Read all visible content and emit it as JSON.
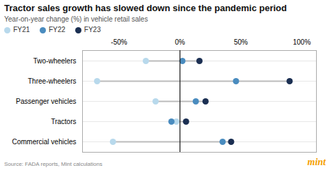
{
  "chart_data": {
    "type": "dot",
    "orientation": "horizontal",
    "title": "Tractor sales growth has slowed down since the pandemic period",
    "subtitle": "Year-on-year change (%) in vehicle retail sales",
    "categories": [
      "Two-wheelers",
      "Three-wheelers",
      "Passenger vehicles",
      "Tractors",
      "Commercial vehicles"
    ],
    "series": [
      {
        "name": "FY21",
        "color": "#b8d9ec",
        "values": [
          -28,
          -68,
          -20,
          -3,
          -55
        ]
      },
      {
        "name": "FY22",
        "color": "#4a8cbf",
        "values": [
          2,
          46,
          13,
          -7,
          35
        ]
      },
      {
        "name": "FY23",
        "color": "#1b2f52",
        "values": [
          16,
          90,
          21,
          5,
          42
        ]
      }
    ],
    "color": "#bbbbbb",
    "xlim": [
      -80,
      112
    ],
    "xticks": [
      {
        "value": -50,
        "label": "-50%"
      },
      {
        "value": 0,
        "label": "0%"
      },
      {
        "value": 50,
        "label": "50%"
      },
      {
        "value": 100,
        "label": "100%"
      }
    ],
    "grid": true,
    "legend": "top",
    "annotations": [
      {
        "text": "Source: FADA reports, Mint calculations"
      },
      {
        "text": "mint",
        "color": "#f5a000"
      }
    ]
  }
}
